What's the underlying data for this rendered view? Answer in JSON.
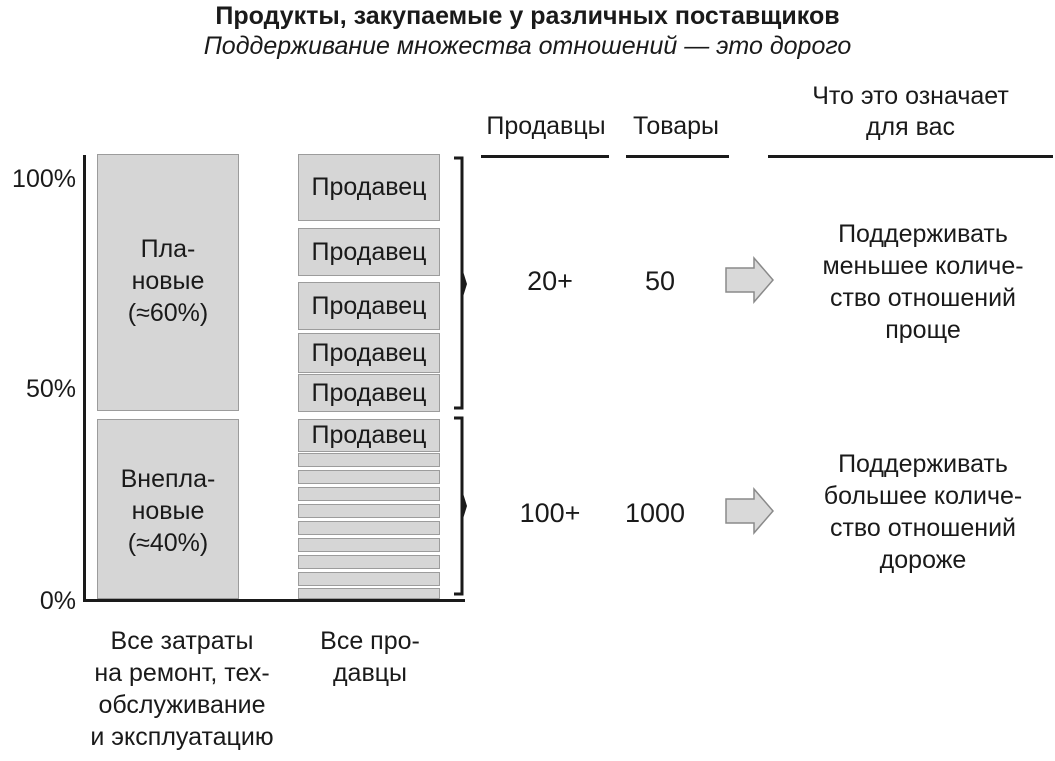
{
  "title": "Продукты, закупаемые у различных поставщиков",
  "subtitle": "Поддерживание множества отношений — это дорого",
  "headers": {
    "vendors": "Продавцы",
    "goods": "Товары",
    "meaning_line1": "Что это означает",
    "meaning_line2": "для вас"
  },
  "y_axis": {
    "top": "100%",
    "mid": "50%",
    "bottom": "0%"
  },
  "left_column": {
    "planned": [
      "Пла-",
      "новые",
      "(≈60%)"
    ],
    "unplanned": [
      "Внепла-",
      "новые",
      "(≈40%)"
    ],
    "caption": [
      "Все затраты",
      "на ремонт, тех-",
      "обслуживание",
      "и эксплуатацию"
    ]
  },
  "right_column": {
    "vendor_label": "Продавец",
    "caption": [
      "Все про-",
      "давцы"
    ]
  },
  "rows": [
    {
      "vendors": "20+",
      "goods": "50",
      "meaning": [
        "Поддерживать",
        "меньшее количе-",
        "ство отношений",
        "проще"
      ]
    },
    {
      "vendors": "100+",
      "goods": "1000",
      "meaning": [
        "Поддерживать",
        "большее количе-",
        "ство отношений",
        "дороже"
      ]
    }
  ],
  "colors": {
    "box_fill": "#d6d6d6",
    "box_border": "#9c9c9c",
    "arrow_fill": "#d9d9d9",
    "text": "#1a1a1a"
  }
}
